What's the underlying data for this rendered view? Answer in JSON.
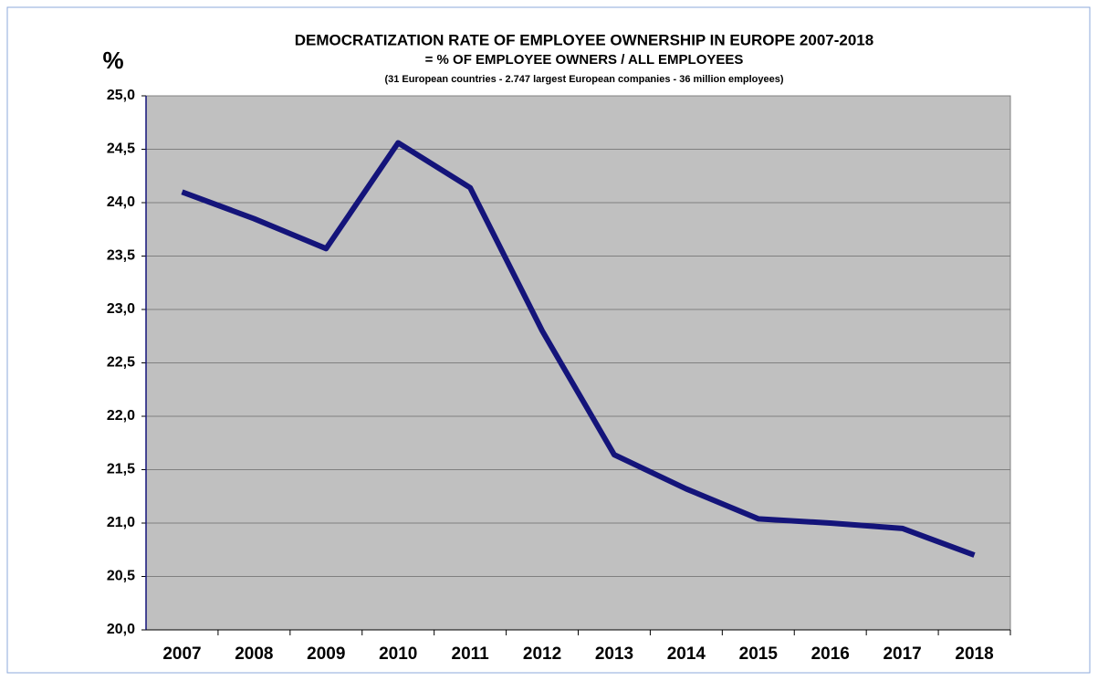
{
  "chart_data": {
    "type": "line",
    "title": "DEMOCRATIZATION  RATE OF EMPLOYEE OWNERSHIP IN EUROPE  2007-2018",
    "subtitle": "= % OF EMPLOYEE OWNERS /  ALL EMPLOYEES",
    "note": "(31 European countries - 2.747 largest European companies - 36 million employees)",
    "y_label": "%",
    "categories": [
      "2007",
      "2008",
      "2009",
      "2010",
      "2011",
      "2012",
      "2013",
      "2014",
      "2015",
      "2016",
      "2017",
      "2018"
    ],
    "series": [
      {
        "name": "Democratization rate",
        "color": "#14147a",
        "values": [
          24.1,
          23.85,
          23.57,
          24.56,
          24.14,
          22.8,
          21.64,
          21.32,
          21.04,
          21.0,
          20.95,
          20.7
        ]
      }
    ],
    "ylim": [
      20,
      25
    ],
    "yticks": [
      {
        "value": 20,
        "label": "20,0"
      },
      {
        "value": 20.5,
        "label": "20,5"
      },
      {
        "value": 21,
        "label": "21,0"
      },
      {
        "value": 21.5,
        "label": "21,5"
      },
      {
        "value": 22,
        "label": "22,0"
      },
      {
        "value": 22.5,
        "label": "22,5"
      },
      {
        "value": 23,
        "label": "23,0"
      },
      {
        "value": 23.5,
        "label": "23,5"
      },
      {
        "value": 24,
        "label": "24,0"
      },
      {
        "value": 24.5,
        "label": "24,5"
      },
      {
        "value": 25,
        "label": "25,0"
      }
    ],
    "grid": true,
    "plot_background": "#c0c0c0"
  }
}
